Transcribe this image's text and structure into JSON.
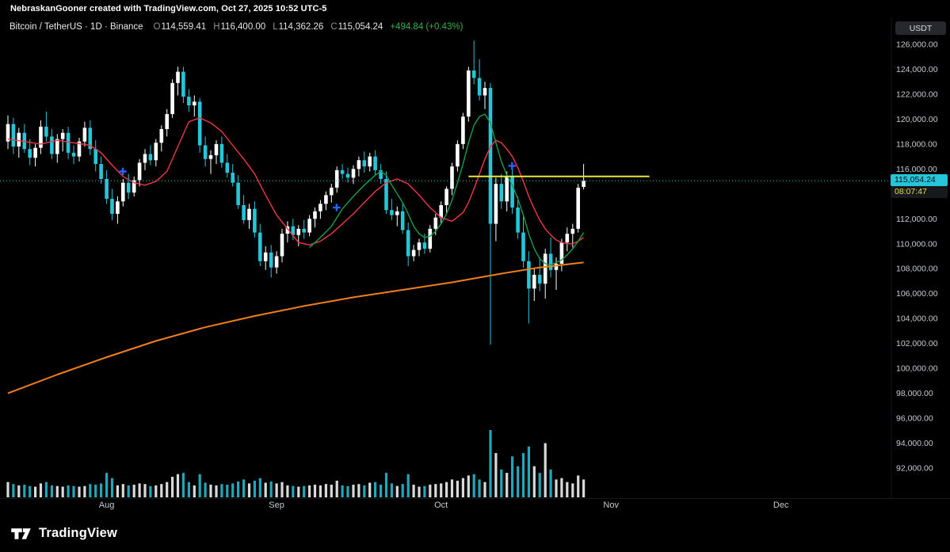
{
  "attribution": {
    "text": "NebraskanGooner created with TradingView.com, Oct 27, 2025 10:52 UTC-5"
  },
  "legend": {
    "title": "Bitcoin / TetherUS · 1D · Binance",
    "ohlc": {
      "o_label": "O",
      "o": "114,559.41",
      "h_label": "H",
      "h": "116,400.00",
      "l_label": "L",
      "l": "114,362.26",
      "c_label": "C",
      "c": "115,054.24",
      "change": "+494.84 (+0.43%)"
    }
  },
  "currency_button": {
    "label": "USDT"
  },
  "last_price": {
    "value": 115054.24,
    "display": "115,054.24",
    "countdown": "08:07:47"
  },
  "price_scale": {
    "max": 126000,
    "min": 92000,
    "step": 2000,
    "labels": [
      "126,000.00",
      "124,000.00",
      "122,000.00",
      "120,000.00",
      "118,000.00",
      "116,000.00",
      "114,000.00",
      "112,000.00",
      "110,000.00",
      "108,000.00",
      "106,000.00",
      "104,000.00",
      "102,000.00",
      "100,000.00",
      "98,000.00",
      "96,000.00",
      "94,000.00",
      "92,000.00"
    ]
  },
  "time_axis": {
    "labels": [
      {
        "text": "Aug",
        "index": 18
      },
      {
        "text": "Sep",
        "index": 49
      },
      {
        "text": "Oct",
        "index": 79
      },
      {
        "text": "Nov",
        "index": 110
      },
      {
        "text": "Dec",
        "index": 141
      }
    ]
  },
  "footer": {
    "brand": "TradingView"
  },
  "colors": {
    "background": "#000000",
    "up": "#ffffff",
    "down": "#26c6da",
    "ma_fast": "#12a14b",
    "ma_mid": "#f23645",
    "ma_slow": "#ef7f1a",
    "yellow_line": "#e8e83a",
    "marker_blue": "#2962ff",
    "axis_text": "#c6cad2",
    "separator": "#17191f",
    "label_bg": "#26c6da",
    "label_text": "#0b0b0b",
    "countdown_bg": "#17191d",
    "countdown_text": "#e2df4e",
    "positive": "#35b24a",
    "ohlc_letter": "#8b9099",
    "ohlc_value": "#e3e5e8",
    "button_bg": "#26282e",
    "button_text": "#d7dade"
  },
  "chart_data": {
    "type": "candlestick",
    "title": "Bitcoin / TetherUS 1D Binance",
    "ylabel": "Price (USDT)",
    "ylim": [
      92000,
      126000
    ],
    "x_unit": "day-index (0 = first visible candle, ~mid-July)",
    "candles": [
      [
        118200,
        120300,
        117600,
        119600
      ],
      [
        119600,
        120100,
        117200,
        117800
      ],
      [
        117800,
        119300,
        116900,
        118900
      ],
      [
        118900,
        119600,
        117300,
        117600
      ],
      [
        117600,
        118400,
        116300,
        116900
      ],
      [
        116900,
        118000,
        116200,
        117700
      ],
      [
        117700,
        119900,
        117200,
        119400
      ],
      [
        119400,
        120600,
        118200,
        118600
      ],
      [
        118600,
        119200,
        116800,
        117200
      ],
      [
        117200,
        118800,
        116500,
        118400
      ],
      [
        118400,
        119200,
        117400,
        118900
      ],
      [
        118900,
        119400,
        116800,
        117300
      ],
      [
        117300,
        117900,
        116400,
        117000
      ],
      [
        117000,
        118500,
        116600,
        118200
      ],
      [
        118200,
        119800,
        117800,
        119300
      ],
      [
        119300,
        119900,
        117100,
        117600
      ],
      [
        117600,
        118300,
        115800,
        116400
      ],
      [
        116400,
        117000,
        114800,
        115200
      ],
      [
        115200,
        115900,
        113200,
        113600
      ],
      [
        113600,
        114400,
        111900,
        112400
      ],
      [
        112400,
        113800,
        111600,
        113400
      ],
      [
        113400,
        115200,
        113000,
        114900
      ],
      [
        114900,
        115600,
        113600,
        114100
      ],
      [
        114100,
        115400,
        113800,
        115100
      ],
      [
        115100,
        116800,
        114600,
        116500
      ],
      [
        116500,
        117600,
        115900,
        117200
      ],
      [
        117200,
        117900,
        116300,
        116700
      ],
      [
        116700,
        118400,
        116200,
        118100
      ],
      [
        118100,
        119500,
        117400,
        119200
      ],
      [
        119200,
        120800,
        118600,
        120400
      ],
      [
        120400,
        123200,
        120100,
        122900
      ],
      [
        122900,
        124200,
        121900,
        123800
      ],
      [
        123800,
        124200,
        121300,
        121800
      ],
      [
        121800,
        122400,
        120600,
        121100
      ],
      [
        121100,
        121900,
        120200,
        121400
      ],
      [
        121400,
        121700,
        117300,
        117900
      ],
      [
        117900,
        118600,
        116200,
        116800
      ],
      [
        116800,
        117500,
        115600,
        117100
      ],
      [
        117100,
        118300,
        116400,
        118000
      ],
      [
        118000,
        118600,
        116100,
        116500
      ],
      [
        116500,
        117200,
        115300,
        115700
      ],
      [
        115700,
        116400,
        114600,
        114900
      ],
      [
        114900,
        115500,
        112800,
        113100
      ],
      [
        113100,
        113900,
        111600,
        111900
      ],
      [
        111900,
        113200,
        111200,
        112800
      ],
      [
        112800,
        113400,
        110500,
        110900
      ],
      [
        110900,
        111600,
        108200,
        108600
      ],
      [
        108600,
        109800,
        107900,
        109300
      ],
      [
        109300,
        109900,
        107300,
        108100
      ],
      [
        108100,
        109400,
        107600,
        109000
      ],
      [
        109000,
        111200,
        108500,
        110800
      ],
      [
        110800,
        111800,
        110100,
        111400
      ],
      [
        111400,
        112000,
        110300,
        110700
      ],
      [
        110700,
        111500,
        109800,
        111200
      ],
      [
        111200,
        111900,
        110400,
        110900
      ],
      [
        110900,
        112300,
        110600,
        112000
      ],
      [
        112000,
        112900,
        111300,
        112600
      ],
      [
        112600,
        113500,
        112000,
        113200
      ],
      [
        113200,
        114200,
        112700,
        113900
      ],
      [
        113900,
        114800,
        113300,
        114500
      ],
      [
        114500,
        116200,
        114100,
        115900
      ],
      [
        115900,
        116400,
        115200,
        115600
      ],
      [
        115600,
        116100,
        114900,
        115300
      ],
      [
        115300,
        116300,
        114800,
        116000
      ],
      [
        116000,
        117000,
        115400,
        116700
      ],
      [
        116700,
        117400,
        115700,
        116200
      ],
      [
        116200,
        117300,
        115800,
        117000
      ],
      [
        117000,
        117500,
        115500,
        115900
      ],
      [
        115900,
        116400,
        114800,
        115200
      ],
      [
        115200,
        115800,
        112400,
        112700
      ],
      [
        112700,
        113600,
        111900,
        112300
      ],
      [
        112300,
        113000,
        111400,
        112600
      ],
      [
        112600,
        113200,
        110800,
        111100
      ],
      [
        111100,
        111700,
        108200,
        109000
      ],
      [
        109000,
        109900,
        108600,
        109500
      ],
      [
        109500,
        110400,
        109000,
        110100
      ],
      [
        110100,
        110800,
        109200,
        109600
      ],
      [
        109600,
        111500,
        109300,
        111200
      ],
      [
        111200,
        112400,
        110700,
        112100
      ],
      [
        112100,
        113400,
        111600,
        113100
      ],
      [
        113100,
        114600,
        112500,
        114400
      ],
      [
        114400,
        116500,
        113900,
        116200
      ],
      [
        116200,
        118300,
        115800,
        118000
      ],
      [
        118000,
        120500,
        117600,
        120200
      ],
      [
        120200,
        124200,
        119800,
        123900
      ],
      [
        123900,
        126300,
        122800,
        123300
      ],
      [
        123300,
        124800,
        121500,
        121900
      ],
      [
        121900,
        123000,
        120800,
        122500
      ],
      [
        122500,
        122900,
        101900,
        111600
      ],
      [
        111600,
        115300,
        110200,
        114800
      ],
      [
        114800,
        115600,
        112800,
        113400
      ],
      [
        113400,
        115800,
        112600,
        115400
      ],
      [
        115400,
        116400,
        112400,
        112900
      ],
      [
        112900,
        113800,
        110400,
        110900
      ],
      [
        110900,
        112300,
        108100,
        108600
      ],
      [
        108600,
        109400,
        103600,
        106400
      ],
      [
        106400,
        108000,
        105400,
        107500
      ],
      [
        107500,
        108900,
        106200,
        106800
      ],
      [
        106800,
        109600,
        105600,
        109200
      ],
      [
        109200,
        110500,
        107300,
        107900
      ],
      [
        107900,
        108900,
        106300,
        108400
      ],
      [
        108400,
        110400,
        107800,
        110100
      ],
      [
        110100,
        111300,
        109400,
        110800
      ],
      [
        110800,
        111600,
        109700,
        111200
      ],
      [
        111200,
        114800,
        110900,
        114500
      ],
      [
        114559.41,
        116400,
        114362.26,
        115054.24
      ]
    ],
    "volume": [
      16,
      13,
      11,
      12,
      10,
      9,
      14,
      16,
      11,
      10,
      9,
      11,
      10,
      9,
      10,
      13,
      12,
      14,
      30,
      22,
      11,
      13,
      11,
      12,
      14,
      13,
      10,
      11,
      13,
      16,
      24,
      28,
      30,
      16,
      11,
      28,
      15,
      12,
      11,
      13,
      12,
      14,
      17,
      20,
      14,
      18,
      22,
      15,
      17,
      14,
      16,
      11,
      10,
      9,
      10,
      11,
      12,
      11,
      13,
      12,
      18,
      11,
      10,
      12,
      13,
      11,
      15,
      16,
      12,
      30,
      14,
      10,
      13,
      28,
      12,
      9,
      10,
      12,
      13,
      14,
      16,
      20,
      18,
      22,
      26,
      28,
      20,
      16,
      95,
      60,
      35,
      30,
      55,
      40,
      60,
      70,
      40,
      30,
      75,
      35,
      20,
      22,
      16,
      14,
      26,
      20
    ],
    "overlays": {
      "ma_fast_green": {
        "points": [
          [
            55,
            109700
          ],
          [
            57,
            110500
          ],
          [
            59,
            111400
          ],
          [
            61,
            112800
          ],
          [
            63,
            113800
          ],
          [
            65,
            114700
          ],
          [
            67,
            115500
          ],
          [
            68,
            115800
          ],
          [
            69,
            115500
          ],
          [
            70,
            114700
          ],
          [
            71,
            114000
          ],
          [
            72,
            113300
          ],
          [
            73,
            112400
          ],
          [
            74,
            111400
          ],
          [
            75,
            110800
          ],
          [
            76,
            110500
          ],
          [
            77,
            110600
          ],
          [
            78,
            111000
          ],
          [
            79,
            111600
          ],
          [
            80,
            112400
          ],
          [
            81,
            113500
          ],
          [
            82,
            114900
          ],
          [
            83,
            116400
          ],
          [
            84,
            118100
          ],
          [
            85,
            119500
          ],
          [
            86,
            120200
          ],
          [
            87,
            120400
          ],
          [
            88,
            119700
          ],
          [
            89,
            118100
          ],
          [
            90,
            116600
          ],
          [
            91,
            115500
          ],
          [
            92,
            114700
          ],
          [
            93,
            113600
          ],
          [
            94,
            112300
          ],
          [
            95,
            110800
          ],
          [
            96,
            109600
          ],
          [
            97,
            108800
          ],
          [
            98,
            108400
          ],
          [
            99,
            108300
          ],
          [
            100,
            108500
          ],
          [
            101,
            108700
          ],
          [
            102,
            109100
          ],
          [
            103,
            109600
          ],
          [
            104,
            110200
          ],
          [
            105,
            110900
          ]
        ]
      },
      "ma_mid_red": {
        "points": [
          [
            0,
            118400
          ],
          [
            3,
            118200
          ],
          [
            6,
            118000
          ],
          [
            9,
            118300
          ],
          [
            12,
            118100
          ],
          [
            15,
            117900
          ],
          [
            17,
            117300
          ],
          [
            19,
            116300
          ],
          [
            21,
            115400
          ],
          [
            23,
            114900
          ],
          [
            25,
            114700
          ],
          [
            27,
            115000
          ],
          [
            29,
            115800
          ],
          [
            31,
            117800
          ],
          [
            33,
            119800
          ],
          [
            35,
            120100
          ],
          [
            37,
            119700
          ],
          [
            39,
            119000
          ],
          [
            41,
            117900
          ],
          [
            43,
            116800
          ],
          [
            45,
            115600
          ],
          [
            47,
            113900
          ],
          [
            49,
            112300
          ],
          [
            51,
            111200
          ],
          [
            53,
            110100
          ],
          [
            55,
            109900
          ],
          [
            57,
            110200
          ],
          [
            59,
            110800
          ],
          [
            61,
            111600
          ],
          [
            63,
            112400
          ],
          [
            65,
            113300
          ],
          [
            67,
            114200
          ],
          [
            69,
            114900
          ],
          [
            71,
            115200
          ],
          [
            73,
            114800
          ],
          [
            75,
            113900
          ],
          [
            77,
            112900
          ],
          [
            79,
            112100
          ],
          [
            81,
            111800
          ],
          [
            83,
            112500
          ],
          [
            84,
            113300
          ],
          [
            85,
            114400
          ],
          [
            86,
            115600
          ],
          [
            87,
            116800
          ],
          [
            88,
            117800
          ],
          [
            89,
            118300
          ],
          [
            90,
            118100
          ],
          [
            91,
            117600
          ],
          [
            92,
            117000
          ],
          [
            93,
            116100
          ],
          [
            94,
            115000
          ],
          [
            95,
            113800
          ],
          [
            96,
            112800
          ],
          [
            97,
            111900
          ],
          [
            98,
            111200
          ],
          [
            99,
            110700
          ],
          [
            100,
            110300
          ],
          [
            101,
            110100
          ],
          [
            102,
            110000
          ],
          [
            103,
            110000
          ],
          [
            104,
            110200
          ],
          [
            105,
            110500
          ]
        ]
      },
      "ma_slow_orange": {
        "points": [
          [
            0,
            98000
          ],
          [
            9,
            99500
          ],
          [
            18,
            100900
          ],
          [
            27,
            102200
          ],
          [
            36,
            103300
          ],
          [
            45,
            104200
          ],
          [
            54,
            105000
          ],
          [
            63,
            105700
          ],
          [
            72,
            106300
          ],
          [
            81,
            106900
          ],
          [
            90,
            107600
          ],
          [
            97,
            108100
          ],
          [
            105,
            108500
          ]
        ]
      },
      "yellow_hline": {
        "price": 115400,
        "from_index": 84,
        "to_index": 117
      },
      "last_price_line": {
        "price": 115054.24,
        "style": "dotted"
      },
      "plus_markers": [
        {
          "index": 21,
          "price": 115800
        },
        {
          "index": 60,
          "price": 112900
        },
        {
          "index": 92,
          "price": 116250
        }
      ]
    }
  }
}
